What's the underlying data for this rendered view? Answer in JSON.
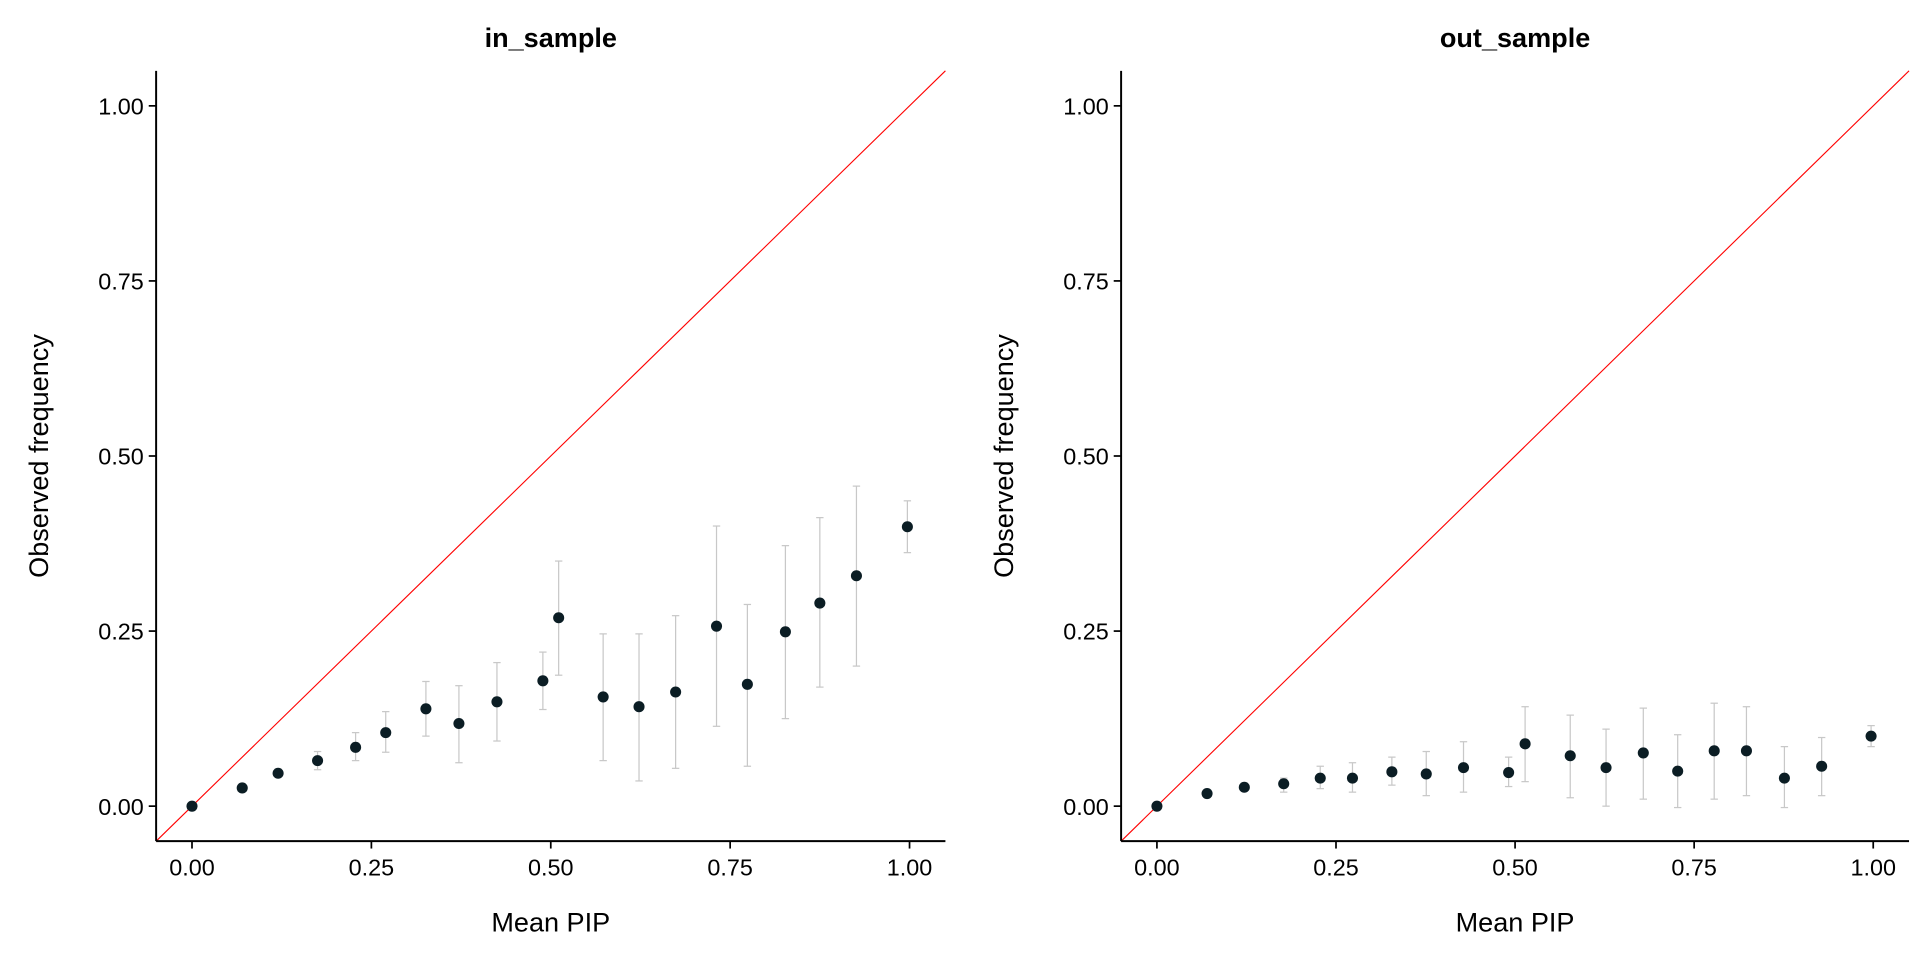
{
  "chart_data": [
    {
      "type": "scatter",
      "title": "in_sample",
      "xlabel": "Mean PIP",
      "ylabel": "Observed frequency",
      "xlim": [
        -0.05,
        1.05
      ],
      "ylim": [
        -0.05,
        1.05
      ],
      "xticks": [
        "0.00",
        "0.25",
        "0.50",
        "0.75",
        "1.00"
      ],
      "yticks": [
        "0.00",
        "0.25",
        "0.50",
        "0.75",
        "1.00"
      ],
      "grid": false,
      "reference_line": {
        "slope": 1,
        "intercept": 0,
        "color": "#ff0000"
      },
      "point_color": "#0b1d24",
      "errorbar_color": "#c8c8c8",
      "points": [
        {
          "x": 0.0,
          "y": 0.0,
          "lo": 0.0,
          "hi": 0.0
        },
        {
          "x": 0.07,
          "y": 0.026,
          "lo": 0.024,
          "hi": 0.028
        },
        {
          "x": 0.12,
          "y": 0.047,
          "lo": 0.043,
          "hi": 0.051
        },
        {
          "x": 0.175,
          "y": 0.065,
          "lo": 0.052,
          "hi": 0.078
        },
        {
          "x": 0.228,
          "y": 0.084,
          "lo": 0.065,
          "hi": 0.105
        },
        {
          "x": 0.27,
          "y": 0.105,
          "lo": 0.077,
          "hi": 0.135
        },
        {
          "x": 0.326,
          "y": 0.139,
          "lo": 0.1,
          "hi": 0.178
        },
        {
          "x": 0.372,
          "y": 0.118,
          "lo": 0.062,
          "hi": 0.172
        },
        {
          "x": 0.425,
          "y": 0.149,
          "lo": 0.093,
          "hi": 0.205
        },
        {
          "x": 0.489,
          "y": 0.179,
          "lo": 0.138,
          "hi": 0.22
        },
        {
          "x": 0.511,
          "y": 0.269,
          "lo": 0.187,
          "hi": 0.35
        },
        {
          "x": 0.573,
          "y": 0.156,
          "lo": 0.065,
          "hi": 0.246
        },
        {
          "x": 0.623,
          "y": 0.142,
          "lo": 0.036,
          "hi": 0.246
        },
        {
          "x": 0.674,
          "y": 0.163,
          "lo": 0.054,
          "hi": 0.272
        },
        {
          "x": 0.731,
          "y": 0.257,
          "lo": 0.114,
          "hi": 0.4
        },
        {
          "x": 0.774,
          "y": 0.174,
          "lo": 0.057,
          "hi": 0.288
        },
        {
          "x": 0.827,
          "y": 0.249,
          "lo": 0.125,
          "hi": 0.372
        },
        {
          "x": 0.875,
          "y": 0.29,
          "lo": 0.17,
          "hi": 0.412
        },
        {
          "x": 0.926,
          "y": 0.329,
          "lo": 0.2,
          "hi": 0.457
        },
        {
          "x": 0.997,
          "y": 0.399,
          "lo": 0.362,
          "hi": 0.436
        }
      ]
    },
    {
      "type": "scatter",
      "title": "out_sample",
      "xlabel": "Mean PIP",
      "ylabel": "Observed frequency",
      "xlim": [
        -0.05,
        1.05
      ],
      "ylim": [
        -0.05,
        1.05
      ],
      "xticks": [
        "0.00",
        "0.25",
        "0.50",
        "0.75",
        "1.00"
      ],
      "yticks": [
        "0.00",
        "0.25",
        "0.50",
        "0.75",
        "1.00"
      ],
      "grid": false,
      "reference_line": {
        "slope": 1,
        "intercept": 0,
        "color": "#ff0000"
      },
      "point_color": "#0b1d24",
      "errorbar_color": "#c8c8c8",
      "points": [
        {
          "x": 0.0,
          "y": 0.0,
          "lo": 0.0,
          "hi": 0.0
        },
        {
          "x": 0.07,
          "y": 0.018,
          "lo": 0.016,
          "hi": 0.02
        },
        {
          "x": 0.122,
          "y": 0.027,
          "lo": 0.024,
          "hi": 0.03
        },
        {
          "x": 0.177,
          "y": 0.032,
          "lo": 0.02,
          "hi": 0.04
        },
        {
          "x": 0.228,
          "y": 0.04,
          "lo": 0.025,
          "hi": 0.057
        },
        {
          "x": 0.273,
          "y": 0.04,
          "lo": 0.02,
          "hi": 0.062
        },
        {
          "x": 0.328,
          "y": 0.049,
          "lo": 0.03,
          "hi": 0.07
        },
        {
          "x": 0.376,
          "y": 0.046,
          "lo": 0.015,
          "hi": 0.078
        },
        {
          "x": 0.428,
          "y": 0.055,
          "lo": 0.02,
          "hi": 0.092
        },
        {
          "x": 0.491,
          "y": 0.048,
          "lo": 0.028,
          "hi": 0.07
        },
        {
          "x": 0.514,
          "y": 0.089,
          "lo": 0.035,
          "hi": 0.142
        },
        {
          "x": 0.577,
          "y": 0.072,
          "lo": 0.012,
          "hi": 0.13
        },
        {
          "x": 0.627,
          "y": 0.055,
          "lo": 0.0,
          "hi": 0.11
        },
        {
          "x": 0.679,
          "y": 0.076,
          "lo": 0.01,
          "hi": 0.14
        },
        {
          "x": 0.727,
          "y": 0.05,
          "lo": -0.002,
          "hi": 0.102
        },
        {
          "x": 0.778,
          "y": 0.079,
          "lo": 0.01,
          "hi": 0.147
        },
        {
          "x": 0.823,
          "y": 0.079,
          "lo": 0.015,
          "hi": 0.142
        },
        {
          "x": 0.876,
          "y": 0.04,
          "lo": -0.002,
          "hi": 0.085
        },
        {
          "x": 0.928,
          "y": 0.057,
          "lo": 0.015,
          "hi": 0.098
        },
        {
          "x": 0.997,
          "y": 0.1,
          "lo": 0.085,
          "hi": 0.115
        }
      ]
    }
  ]
}
